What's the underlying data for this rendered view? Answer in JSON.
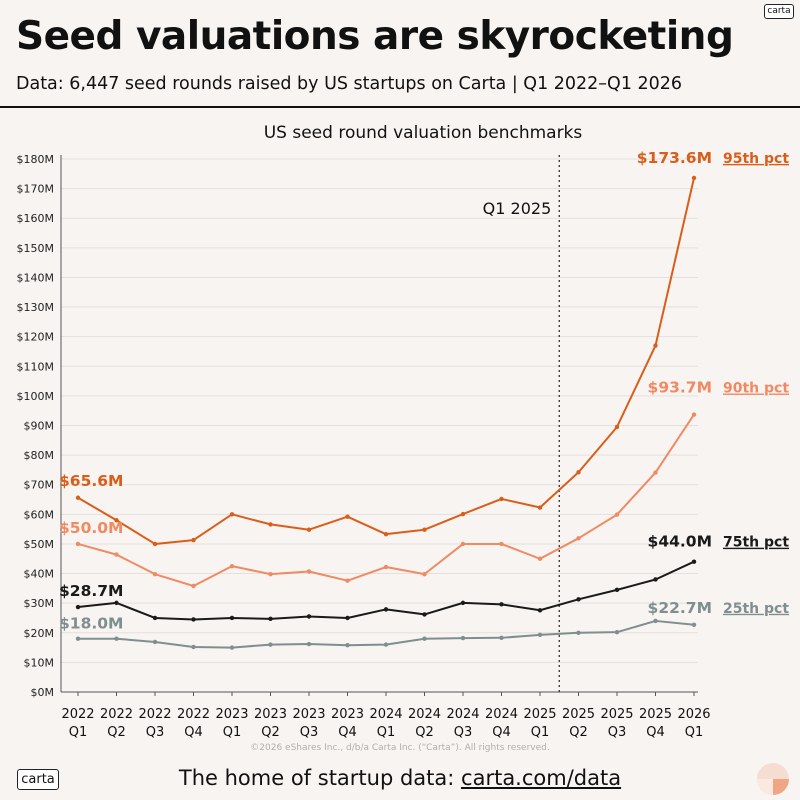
{
  "brand": {
    "logo_text": "carta"
  },
  "header": {
    "title": "Seed valuations are skyrocketing",
    "subtitle": "Data: 6,447 seed rounds raised by US startups on Carta | Q1 2022–Q1 2026"
  },
  "footer": {
    "copyright": "©2026 eShares Inc., d/b/a Carta Inc. (“Carta”). All rights reserved.",
    "tagline": "The home of startup data: ",
    "link_text": "carta.com/data"
  },
  "colors": {
    "p95": "#d95e1a",
    "p90": "#f08a62",
    "p75": "#1a1a1a",
    "p25": "#7f8f90",
    "grid": "#e4e0de",
    "axis": "#555555",
    "background": "#f8f4f2"
  },
  "chart_data": {
    "type": "line",
    "title": "US seed round valuation benchmarks",
    "ylim": [
      0,
      180
    ],
    "yticks": [
      0,
      10,
      20,
      30,
      40,
      50,
      60,
      70,
      80,
      90,
      100,
      110,
      120,
      130,
      140,
      150,
      160,
      170,
      180
    ],
    "ytick_labels": [
      "$0M",
      "$10M",
      "$20M",
      "$30M",
      "$40M",
      "$50M",
      "$60M",
      "$70M",
      "$80M",
      "$90M",
      "$100M",
      "$110M",
      "$120M",
      "$130M",
      "$140M",
      "$150M",
      "$160M",
      "$170M",
      "$180M"
    ],
    "categories": [
      {
        "year": "2022",
        "q": "Q1"
      },
      {
        "year": "2022",
        "q": "Q2"
      },
      {
        "year": "2022",
        "q": "Q3"
      },
      {
        "year": "2022",
        "q": "Q4"
      },
      {
        "year": "2023",
        "q": "Q1"
      },
      {
        "year": "2023",
        "q": "Q2"
      },
      {
        "year": "2023",
        "q": "Q3"
      },
      {
        "year": "2023",
        "q": "Q4"
      },
      {
        "year": "2024",
        "q": "Q1"
      },
      {
        "year": "2024",
        "q": "Q2"
      },
      {
        "year": "2024",
        "q": "Q3"
      },
      {
        "year": "2024",
        "q": "Q4"
      },
      {
        "year": "2025",
        "q": "Q1"
      },
      {
        "year": "2025",
        "q": "Q2"
      },
      {
        "year": "2025",
        "q": "Q3"
      },
      {
        "year": "2025",
        "q": "Q4"
      },
      {
        "year": "2026",
        "q": "Q1"
      }
    ],
    "grid": true,
    "annotation": {
      "label": "Q1 2025",
      "after_index": 12
    },
    "series": [
      {
        "key": "p95",
        "name": "95th pct",
        "color": "#d95e1a",
        "first_label": "$65.6M",
        "last_label": "$173.6M",
        "values": [
          65.6,
          58.0,
          50.0,
          51.3,
          60.0,
          56.6,
          54.8,
          59.2,
          53.3,
          54.8,
          60.1,
          65.2,
          62.3,
          74.2,
          89.5,
          117.0,
          173.6
        ]
      },
      {
        "key": "p90",
        "name": "90th pct",
        "color": "#f08a62",
        "first_label": "$50.0M",
        "last_label": "$93.7M",
        "values": [
          50.0,
          46.4,
          39.8,
          35.8,
          42.5,
          39.8,
          40.7,
          37.6,
          42.2,
          39.8,
          50.0,
          50.0,
          45.0,
          51.9,
          59.9,
          74.1,
          93.7
        ]
      },
      {
        "key": "p75",
        "name": "75th pct",
        "color": "#1a1a1a",
        "first_label": "$28.7M",
        "last_label": "$44.0M",
        "values": [
          28.7,
          30.1,
          25.0,
          24.5,
          25.0,
          24.7,
          25.5,
          25.0,
          27.9,
          26.2,
          30.1,
          29.6,
          27.6,
          31.3,
          34.5,
          38.0,
          44.0
        ]
      },
      {
        "key": "p25",
        "name": "25th pct",
        "color": "#7f8f90",
        "first_label": "$18.0M",
        "last_label": "$22.7M",
        "values": [
          18.0,
          18.0,
          16.9,
          15.2,
          15.0,
          16.0,
          16.2,
          15.8,
          16.0,
          18.0,
          18.2,
          18.3,
          19.3,
          20.0,
          20.2,
          24.0,
          22.7
        ]
      }
    ]
  }
}
